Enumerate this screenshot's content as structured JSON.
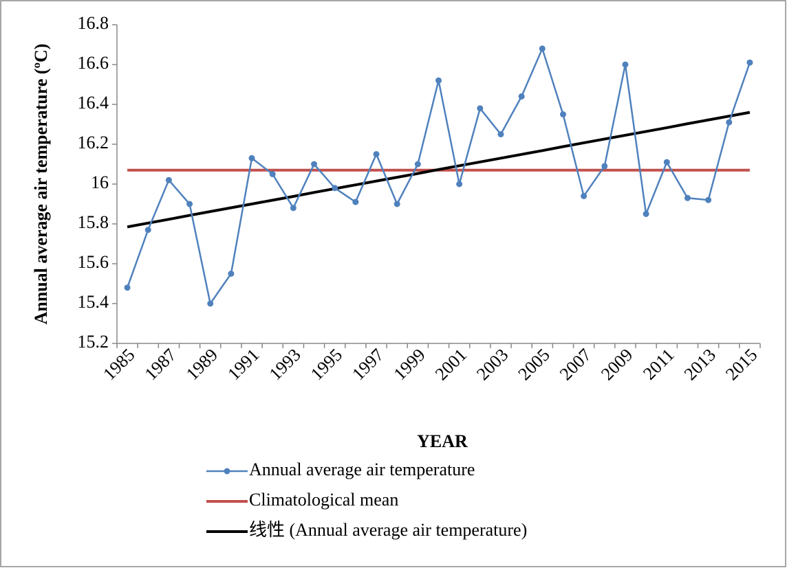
{
  "chart_data": {
    "type": "line",
    "y_label": "Annual average air temperature (ºC)",
    "x_label": "YEAR",
    "categories": [
      "1985",
      null,
      "1987",
      null,
      "1989",
      null,
      "1991",
      null,
      "1993",
      null,
      "1995",
      null,
      "1997",
      null,
      "1999",
      null,
      "2001",
      null,
      "2003",
      null,
      "2005",
      null,
      "2007",
      null,
      "2009",
      null,
      "2011",
      null,
      "2013",
      null,
      "2015"
    ],
    "series": [
      {
        "name": "Annual average air temperature",
        "color": "#4f81bd",
        "marker": true,
        "values": [
          15.48,
          15.77,
          16.02,
          15.9,
          15.4,
          15.55,
          16.13,
          16.05,
          15.88,
          16.1,
          15.98,
          15.91,
          16.15,
          15.9,
          16.1,
          16.52,
          16.0,
          16.38,
          16.25,
          16.44,
          16.68,
          16.35,
          15.94,
          16.09,
          16.6,
          15.85,
          16.11,
          15.93,
          15.92,
          16.31,
          16.61
        ]
      },
      {
        "name": "Climatological mean",
        "color": "#c0504d",
        "marker": false,
        "values": [
          16.07,
          16.07,
          16.07,
          16.07,
          16.07,
          16.07,
          16.07,
          16.07,
          16.07,
          16.07,
          16.07,
          16.07,
          16.07,
          16.07,
          16.07,
          16.07,
          16.07,
          16.07,
          16.07,
          16.07,
          16.07,
          16.07,
          16.07,
          16.07,
          16.07,
          16.07,
          16.07,
          16.07,
          16.07,
          16.07,
          16.07
        ]
      },
      {
        "name": "线性 (Annual average air temperature)",
        "color": "#000000",
        "marker": false,
        "values": [
          15.785,
          15.804,
          15.823,
          15.843,
          15.862,
          15.881,
          15.9,
          15.919,
          15.938,
          15.958,
          15.977,
          15.996,
          16.015,
          16.034,
          16.053,
          16.073,
          16.092,
          16.111,
          16.13,
          16.149,
          16.168,
          16.188,
          16.207,
          16.226,
          16.245,
          16.264,
          16.283,
          16.303,
          16.322,
          16.341,
          16.36
        ]
      }
    ],
    "ylim": [
      15.2,
      16.8
    ],
    "yticks": [
      15.2,
      15.4,
      15.6,
      15.8,
      16,
      16.2,
      16.4,
      16.6,
      16.8
    ],
    "grid": false,
    "legend": "bottom"
  }
}
